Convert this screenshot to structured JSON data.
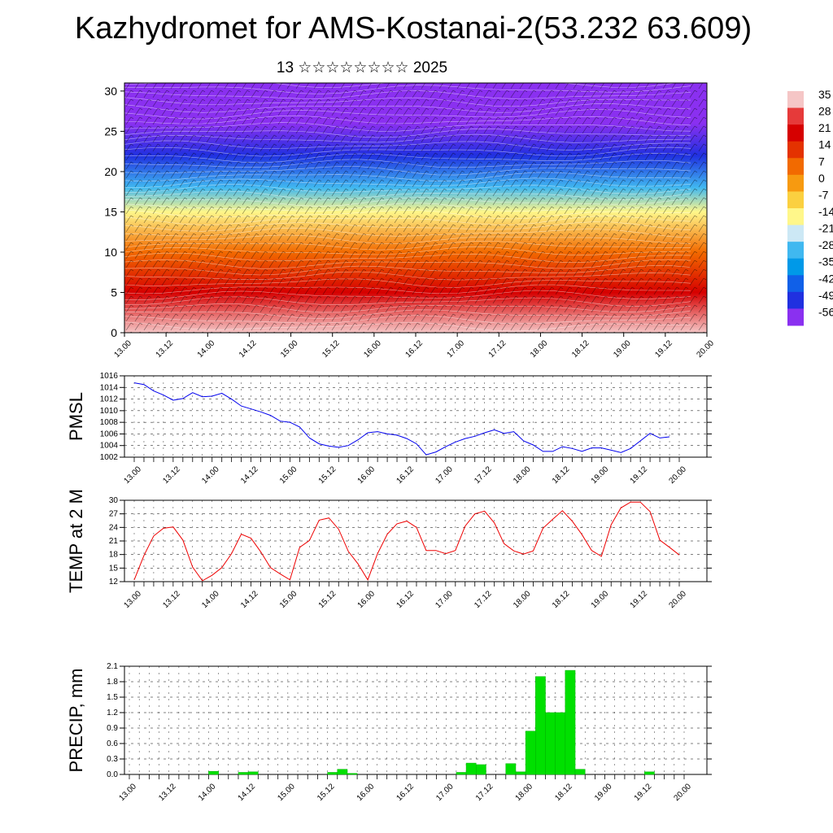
{
  "title": "Kazhydromet for AMS-Kostanai-2(53.232 63.609)",
  "subtitle": "13 ☆☆☆☆☆☆☆☆ 2025",
  "time_labels": [
    "13.00",
    "13.12",
    "14.00",
    "14.12",
    "15.00",
    "15.12",
    "16.00",
    "16.12",
    "17.00",
    "17.12",
    "18.00",
    "18.12",
    "19.00",
    "19.12",
    "20.00"
  ],
  "chart_data": [
    {
      "type": "heatmap",
      "name": "cross-section",
      "ylim": [
        0,
        31
      ],
      "yticks": [
        0,
        5,
        10,
        15,
        20,
        25,
        30
      ],
      "xlim": [
        0,
        168
      ],
      "colorbar": {
        "labels": [
          "35",
          "28",
          "21",
          "14",
          "7",
          "0",
          "-7",
          "-14",
          "-21",
          "-28",
          "-35",
          "-42",
          "-49",
          "-56"
        ],
        "colors": [
          "#f5c6c6",
          "#e63a3a",
          "#d60000",
          "#e43200",
          "#f26a00",
          "#f79a10",
          "#fbd040",
          "#fff78a",
          "#cce8f5",
          "#40b8f0",
          "#0099e8",
          "#1060e8",
          "#2030e0",
          "#8a30f0"
        ]
      },
      "temperature_by_level": [
        {
          "level": 0,
          "value": 35
        },
        {
          "level": 5,
          "value": 20
        },
        {
          "level": 10,
          "value": 5
        },
        {
          "level": 15,
          "value": -12
        },
        {
          "level": 18,
          "value": -30
        },
        {
          "level": 22,
          "value": -48
        },
        {
          "level": 26,
          "value": -56
        },
        {
          "level": 31,
          "value": -56
        }
      ]
    },
    {
      "type": "line",
      "name": "PMSL",
      "ylabel": "PMSL",
      "ylim": [
        1002,
        1016
      ],
      "yticks": [
        1002,
        1004,
        1006,
        1008,
        1010,
        1012,
        1014,
        1016
      ],
      "color": "#0000ee",
      "points": [
        [
          0,
          1014.8
        ],
        [
          3,
          1014.5
        ],
        [
          6,
          1013.4
        ],
        [
          9,
          1012.7
        ],
        [
          12,
          1011.8
        ],
        [
          15,
          1012.1
        ],
        [
          18,
          1013.1
        ],
        [
          21,
          1012.4
        ],
        [
          24,
          1012.5
        ],
        [
          27,
          1013.0
        ],
        [
          30,
          1012.0
        ],
        [
          33,
          1010.8
        ],
        [
          36,
          1010.3
        ],
        [
          39,
          1009.8
        ],
        [
          42,
          1009.2
        ],
        [
          45,
          1008.2
        ],
        [
          48,
          1008.0
        ],
        [
          51,
          1007.2
        ],
        [
          54,
          1005.3
        ],
        [
          57,
          1004.3
        ],
        [
          60,
          1003.9
        ],
        [
          63,
          1003.7
        ],
        [
          66,
          1004.0
        ],
        [
          69,
          1005.0
        ],
        [
          72,
          1006.2
        ],
        [
          75,
          1006.4
        ],
        [
          78,
          1006.0
        ],
        [
          81,
          1005.8
        ],
        [
          84,
          1005.2
        ],
        [
          87,
          1004.3
        ],
        [
          90,
          1002.4
        ],
        [
          93,
          1002.9
        ],
        [
          96,
          1003.8
        ],
        [
          99,
          1004.6
        ],
        [
          102,
          1005.2
        ],
        [
          105,
          1005.6
        ],
        [
          108,
          1006.2
        ],
        [
          111,
          1006.7
        ],
        [
          114,
          1006.1
        ],
        [
          117,
          1006.4
        ],
        [
          120,
          1004.8
        ],
        [
          123,
          1004.1
        ],
        [
          126,
          1003.0
        ],
        [
          129,
          1003.0
        ],
        [
          132,
          1003.8
        ],
        [
          135,
          1003.5
        ],
        [
          138,
          1003.0
        ],
        [
          141,
          1003.6
        ],
        [
          144,
          1003.6
        ],
        [
          147,
          1003.2
        ],
        [
          150,
          1002.8
        ],
        [
          153,
          1003.5
        ],
        [
          156,
          1004.8
        ],
        [
          159,
          1006.1
        ],
        [
          162,
          1005.3
        ],
        [
          165,
          1005.5
        ]
      ]
    },
    {
      "type": "line",
      "name": "TEMP at 2 M",
      "ylabel": "TEMP at 2 M",
      "ylim": [
        12,
        30
      ],
      "yticks": [
        12,
        15,
        18,
        21,
        24,
        27,
        30
      ],
      "color": "#ee0000",
      "points": [
        [
          0,
          12.4
        ],
        [
          3,
          17.8
        ],
        [
          6,
          22.1
        ],
        [
          9,
          23.8
        ],
        [
          12,
          24.1
        ],
        [
          15,
          21.2
        ],
        [
          18,
          15.2
        ],
        [
          21,
          12.2
        ],
        [
          24,
          13.4
        ],
        [
          27,
          15.1
        ],
        [
          30,
          18.2
        ],
        [
          33,
          22.5
        ],
        [
          36,
          21.6
        ],
        [
          39,
          18.6
        ],
        [
          42,
          15.1
        ],
        [
          45,
          13.7
        ],
        [
          48,
          12.4
        ],
        [
          51,
          19.6
        ],
        [
          54,
          21.1
        ],
        [
          57,
          25.6
        ],
        [
          60,
          26.1
        ],
        [
          63,
          23.6
        ],
        [
          66,
          18.7
        ],
        [
          69,
          15.9
        ],
        [
          72,
          12.4
        ],
        [
          75,
          18.2
        ],
        [
          78,
          22.5
        ],
        [
          81,
          24.8
        ],
        [
          84,
          25.4
        ],
        [
          87,
          24.0
        ],
        [
          90,
          18.9
        ],
        [
          93,
          18.9
        ],
        [
          96,
          18.2
        ],
        [
          99,
          18.9
        ],
        [
          102,
          24.3
        ],
        [
          105,
          27.0
        ],
        [
          108,
          27.6
        ],
        [
          111,
          25.0
        ],
        [
          114,
          20.4
        ],
        [
          117,
          18.8
        ],
        [
          120,
          18.1
        ],
        [
          123,
          18.8
        ],
        [
          126,
          23.8
        ],
        [
          129,
          25.8
        ],
        [
          132,
          27.7
        ],
        [
          135,
          25.4
        ],
        [
          138,
          22.4
        ],
        [
          141,
          18.9
        ],
        [
          144,
          17.6
        ],
        [
          147,
          24.6
        ],
        [
          150,
          28.3
        ],
        [
          153,
          29.6
        ],
        [
          156,
          29.6
        ],
        [
          159,
          27.5
        ],
        [
          162,
          21.2
        ],
        [
          165,
          19.6
        ],
        [
          168,
          17.9
        ]
      ]
    },
    {
      "type": "bar",
      "name": "PRECIP, mm",
      "ylabel": "PRECIP, mm",
      "ylim": [
        0,
        2.1
      ],
      "yticks": [
        "0.0",
        "0.3",
        "0.6",
        "0.9",
        "1.2",
        "1.5",
        "1.8",
        "2.1"
      ],
      "color": "#00e000",
      "bar_width_hours": 3,
      "bars": [
        [
          24,
          0.06
        ],
        [
          33,
          0.04
        ],
        [
          36,
          0.05
        ],
        [
          60,
          0.04
        ],
        [
          63,
          0.1
        ],
        [
          66,
          0.02
        ],
        [
          99,
          0.04
        ],
        [
          102,
          0.22
        ],
        [
          105,
          0.19
        ],
        [
          114,
          0.21
        ],
        [
          117,
          0.05
        ],
        [
          120,
          0.84
        ],
        [
          123,
          1.9
        ],
        [
          126,
          1.2
        ],
        [
          129,
          1.2
        ],
        [
          132,
          2.02
        ],
        [
          135,
          0.1
        ],
        [
          156,
          0.05
        ]
      ]
    }
  ]
}
